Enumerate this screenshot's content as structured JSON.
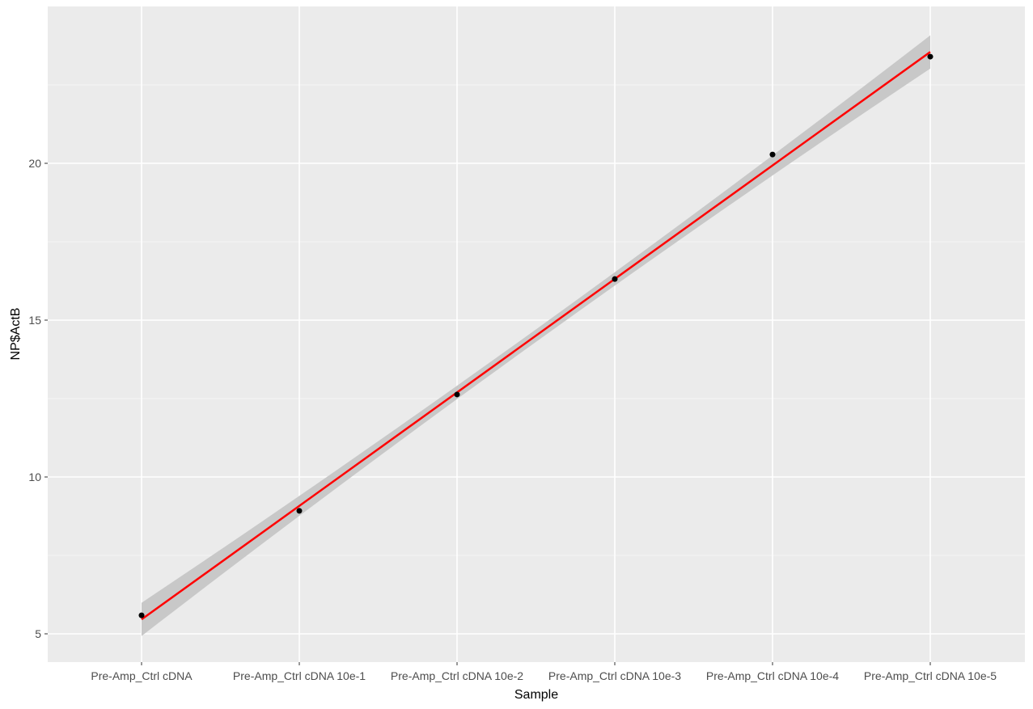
{
  "chart_data": {
    "type": "scatter",
    "title": "",
    "xlabel": "Sample",
    "ylabel": "NP$ActB",
    "categories": [
      "Pre-Amp_Ctrl cDNA",
      "Pre-Amp_Ctrl cDNA 10e-1",
      "Pre-Amp_Ctrl cDNA 10e-2",
      "Pre-Amp_Ctrl cDNA 10e-3",
      "Pre-Amp_Ctrl cDNA 10e-4",
      "Pre-Amp_Ctrl cDNA 10e-5"
    ],
    "values": [
      5.59,
      8.92,
      12.63,
      16.31,
      20.28,
      23.4
    ],
    "fit": {
      "method": "linear",
      "start": 5.46,
      "end": 23.55,
      "se_band": true,
      "color": "#ff0000",
      "band_color": "#c8c8c8"
    },
    "yticks": [
      5,
      10,
      15,
      20
    ],
    "ylim": [
      4.0,
      24.9
    ],
    "grid": true,
    "panel_background": "#ebebeb",
    "point_color": "#000000"
  }
}
